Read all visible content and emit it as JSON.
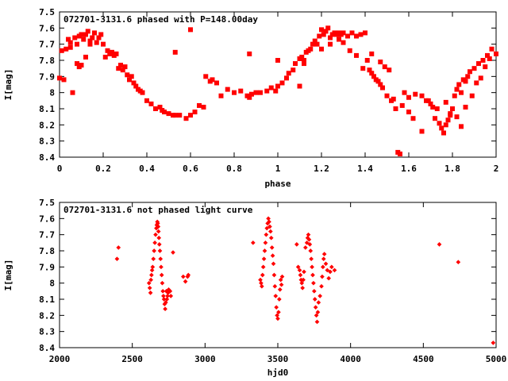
{
  "chart_data": [
    {
      "type": "scatter",
      "title": "072701-3131.6 phased with P=148.00day",
      "xlabel": "phase",
      "ylabel": "I[mag]",
      "xlim": [
        0,
        2
      ],
      "ylim": [
        7.5,
        8.4
      ],
      "y_inverted": true,
      "xticks": [
        "0",
        "0.2",
        "0.4",
        "0.6",
        "0.8",
        "1",
        "1.2",
        "1.4",
        "1.6",
        "1.8",
        "2"
      ],
      "yticks": [
        "7.5",
        "7.6",
        "7.7",
        "7.8",
        "7.9",
        "8",
        "8.1",
        "8.2",
        "8.3",
        "8.4"
      ],
      "grid": false,
      "marker_color": "#ff0000",
      "series": [
        {
          "x": [
            0.0,
            0.01,
            0.02,
            0.03,
            0.05,
            0.06,
            0.07,
            0.08,
            0.09,
            0.1,
            0.1,
            0.11,
            0.12,
            0.13,
            0.14,
            0.15,
            0.16,
            0.17,
            0.18,
            0.19,
            0.2,
            0.21,
            0.22,
            0.23,
            0.24,
            0.25,
            0.26,
            0.27,
            0.28,
            0.29,
            0.3,
            0.31,
            0.32,
            0.33,
            0.34,
            0.35,
            0.36,
            0.37,
            0.38,
            0.4,
            0.42,
            0.44,
            0.46,
            0.47,
            0.48,
            0.5,
            0.52,
            0.53,
            0.55,
            0.58,
            0.6,
            0.62,
            0.64,
            0.66,
            0.67,
            0.69,
            0.7,
            0.72,
            0.74,
            0.77,
            0.8,
            0.83,
            0.86,
            0.87,
            0.88,
            0.9,
            0.92,
            0.95,
            0.97,
            0.99,
            1.0,
            1.02,
            1.04,
            1.05,
            1.07,
            1.08,
            1.1,
            1.11,
            1.12,
            1.13,
            1.14,
            1.15,
            1.16,
            1.17,
            1.18,
            1.19,
            1.2,
            1.21,
            1.22,
            1.23,
            1.24,
            1.25,
            1.26,
            1.27,
            1.28,
            1.29,
            1.3,
            1.32,
            1.34,
            1.36,
            1.38,
            1.4,
            1.42,
            1.43,
            1.44,
            1.45,
            1.46,
            1.47,
            1.48,
            1.5,
            1.52,
            1.54,
            1.55,
            1.56,
            1.58,
            1.6,
            1.63,
            1.66,
            1.68,
            1.7,
            1.72,
            1.74,
            1.75,
            1.76,
            1.77,
            1.78,
            1.79,
            1.8,
            1.81,
            1.82,
            1.83,
            1.84,
            1.85,
            1.86,
            1.87,
            1.88,
            1.9,
            1.92,
            1.94,
            1.96,
            1.98,
            2.0,
            0.04,
            0.05,
            0.08,
            0.09,
            0.12,
            0.14,
            0.53,
            0.6,
            0.87,
            1.0,
            1.1,
            1.12,
            1.2,
            1.24,
            1.28,
            1.3,
            1.33,
            1.36,
            1.39,
            1.41,
            1.43,
            1.47,
            1.49,
            1.51,
            1.53,
            1.57,
            1.6,
            1.62,
            1.66,
            1.69,
            1.71,
            1.73,
            1.77,
            1.79,
            1.82,
            1.84,
            1.86,
            1.89,
            1.91,
            1.93,
            1.95,
            1.97
          ],
          "y": [
            7.91,
            7.74,
            7.92,
            7.73,
            7.69,
            8.0,
            7.66,
            7.7,
            7.65,
            7.64,
            7.83,
            7.67,
            7.64,
            7.62,
            7.68,
            7.66,
            7.63,
            7.69,
            7.66,
            7.64,
            7.7,
            7.78,
            7.74,
            7.76,
            7.75,
            7.77,
            7.76,
            7.85,
            7.83,
            7.86,
            7.84,
            7.89,
            7.92,
            7.9,
            7.94,
            7.96,
            7.98,
            7.99,
            8.0,
            8.05,
            8.07,
            8.1,
            8.09,
            8.11,
            8.12,
            8.13,
            8.14,
            8.14,
            8.14,
            8.16,
            8.14,
            8.12,
            8.08,
            8.09,
            7.9,
            7.93,
            7.92,
            7.94,
            8.02,
            7.98,
            8.0,
            7.99,
            8.02,
            8.03,
            8.01,
            8.0,
            8.0,
            7.99,
            7.97,
            7.99,
            7.96,
            7.94,
            7.91,
            7.88,
            7.86,
            7.82,
            7.79,
            7.78,
            7.8,
            7.75,
            7.74,
            7.73,
            7.7,
            7.68,
            7.7,
            7.65,
            7.61,
            7.64,
            7.62,
            7.6,
            7.66,
            7.64,
            7.63,
            7.64,
            7.63,
            7.64,
            7.63,
            7.65,
            7.63,
            7.65,
            7.64,
            7.63,
            7.86,
            7.88,
            7.9,
            7.92,
            7.93,
            7.95,
            7.97,
            8.02,
            8.05,
            8.1,
            8.37,
            8.38,
            8.0,
            8.03,
            8.01,
            8.24,
            8.05,
            8.07,
            8.16,
            8.19,
            8.22,
            8.25,
            8.2,
            8.17,
            8.14,
            8.1,
            8.02,
            7.98,
            7.95,
            8.0,
            7.92,
            7.93,
            7.9,
            7.87,
            7.85,
            7.82,
            7.8,
            7.77,
            7.73,
            7.76,
            7.67,
            7.72,
            7.82,
            7.84,
            7.78,
            7.7,
            7.75,
            7.61,
            7.76,
            7.8,
            7.96,
            7.82,
            7.73,
            7.7,
            7.67,
            7.69,
            7.74,
            7.77,
            7.85,
            7.8,
            7.76,
            7.81,
            7.84,
            7.86,
            8.04,
            8.08,
            8.12,
            8.16,
            8.02,
            8.05,
            8.09,
            8.1,
            8.06,
            8.13,
            8.15,
            8.21,
            8.09,
            8.02,
            7.94,
            7.91,
            7.84,
            7.79
          ]
        }
      ]
    },
    {
      "type": "scatter",
      "title": "072701-3131.6 not phased light curve",
      "xlabel": "hjd0",
      "ylabel": "I[mag]",
      "xlim": [
        2000,
        5000
      ],
      "ylim": [
        7.5,
        8.4
      ],
      "y_inverted": true,
      "xticks": [
        "2000",
        "2500",
        "3000",
        "3500",
        "4000",
        "4500",
        "5000"
      ],
      "yticks": [
        "7.5",
        "7.6",
        "7.7",
        "7.8",
        "7.9",
        "8",
        "8.1",
        "8.2",
        "8.3",
        "8.4"
      ],
      "grid": false,
      "marker_color": "#ff0000",
      "series": [
        {
          "x": [
            2395,
            2405,
            2615,
            2620,
            2625,
            2628,
            2632,
            2636,
            2640,
            2645,
            2650,
            2655,
            2660,
            2665,
            2668,
            2672,
            2675,
            2678,
            2680,
            2683,
            2686,
            2690,
            2694,
            2698,
            2702,
            2706,
            2710,
            2714,
            2718,
            2722,
            2726,
            2730,
            2734,
            2738,
            2742,
            2746,
            2750,
            2760,
            2765,
            2780,
            2850,
            2865,
            2880,
            2885,
            3330,
            3380,
            3385,
            3390,
            3395,
            3400,
            3405,
            3410,
            3415,
            3420,
            3425,
            3430,
            3435,
            3440,
            3445,
            3450,
            3455,
            3460,
            3465,
            3470,
            3475,
            3480,
            3485,
            3490,
            3495,
            3500,
            3505,
            3510,
            3515,
            3520,
            3525,
            3530,
            3630,
            3640,
            3650,
            3655,
            3660,
            3665,
            3670,
            3675,
            3680,
            3690,
            3700,
            3705,
            3710,
            3715,
            3720,
            3725,
            3730,
            3735,
            3740,
            3745,
            3750,
            3755,
            3760,
            3765,
            3770,
            3775,
            3780,
            3790,
            3800,
            3805,
            3810,
            3815,
            3820,
            3830,
            3840,
            3850,
            3860,
            3870,
            3890,
            4610,
            4740,
            4980
          ],
          "y": [
            7.85,
            7.78,
            8.0,
            8.03,
            8.06,
            7.98,
            7.95,
            7.92,
            7.9,
            7.85,
            7.8,
            7.75,
            7.7,
            7.66,
            7.64,
            7.62,
            7.63,
            7.65,
            7.68,
            7.72,
            7.76,
            7.8,
            7.85,
            7.9,
            7.95,
            8.0,
            8.05,
            8.08,
            8.1,
            8.13,
            8.16,
            8.12,
            8.05,
            8.1,
            8.08,
            8.06,
            8.04,
            8.05,
            8.08,
            7.81,
            7.96,
            7.99,
            7.96,
            7.95,
            7.75,
            7.98,
            8.0,
            8.02,
            7.95,
            7.9,
            7.85,
            7.8,
            7.75,
            7.7,
            7.66,
            7.63,
            7.6,
            7.62,
            7.65,
            7.68,
            7.72,
            7.78,
            7.83,
            7.88,
            7.95,
            8.02,
            8.08,
            8.15,
            8.2,
            8.22,
            8.18,
            8.1,
            8.04,
            7.98,
            8.01,
            7.96,
            7.76,
            7.9,
            7.92,
            7.95,
            7.98,
            8.0,
            8.03,
            7.98,
            7.93,
            7.78,
            7.75,
            7.72,
            7.7,
            7.73,
            7.76,
            7.8,
            7.85,
            7.9,
            7.95,
            8.0,
            8.05,
            8.1,
            8.15,
            8.2,
            8.24,
            8.18,
            8.12,
            8.08,
            8.02,
            7.96,
            7.9,
            7.85,
            7.82,
            7.88,
            7.92,
            7.97,
            7.93,
            7.9,
            7.92,
            7.76,
            7.87,
            8.37
          ]
        }
      ]
    }
  ]
}
